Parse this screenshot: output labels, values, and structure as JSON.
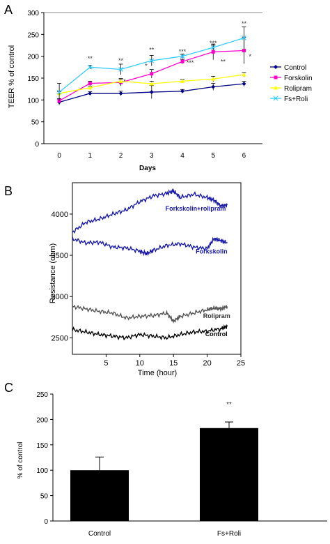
{
  "chart_data": [
    {
      "panel": "A",
      "type": "line",
      "xlabel": "Days",
      "ylabel": "TEER % of control",
      "x": [
        0,
        1,
        2,
        3,
        4,
        5,
        6
      ],
      "xticks": [
        "0",
        "1",
        "2",
        "3",
        "4",
        "5",
        "6"
      ],
      "yticks": [
        "0",
        "50",
        "100",
        "150",
        "200",
        "250",
        "300"
      ],
      "xlim": [
        -0.5,
        6.6
      ],
      "ylim": [
        0,
        300
      ],
      "grid": "horizontal-top-only",
      "legend": "right",
      "series": [
        {
          "name": "Control",
          "color": "#000080",
          "marker": "diamond",
          "values": [
            95,
            115,
            115,
            118,
            120,
            130,
            137
          ],
          "errors": [
            6,
            4,
            5,
            15,
            4,
            8,
            6
          ]
        },
        {
          "name": "Forskolin",
          "color": "#ff00cc",
          "marker": "square",
          "values": [
            98,
            138,
            140,
            160,
            188,
            210,
            213
          ],
          "errors": [
            5,
            5,
            8,
            10,
            5,
            18,
            30
          ]
        },
        {
          "name": "Rolipram",
          "color": "#ffff00",
          "marker": "triangle",
          "values": [
            115,
            128,
            143,
            137,
            143,
            148,
            158
          ],
          "errors": [
            4,
            4,
            6,
            6,
            4,
            6,
            5
          ]
        },
        {
          "name": "Fs+Roli",
          "color": "#33ccff",
          "marker": "x",
          "values": [
            118,
            175,
            170,
            190,
            200,
            220,
            242
          ],
          "errors": [
            20,
            4,
            12,
            12,
            5,
            6,
            25
          ]
        }
      ],
      "annotations": [
        {
          "x": 1,
          "y": 190,
          "text": "**"
        },
        {
          "x": 2,
          "y": 185,
          "text": "**"
        },
        {
          "x": 2.12,
          "y": 137,
          "text": "*"
        },
        {
          "x": 3,
          "y": 210,
          "text": "**"
        },
        {
          "x": 2.82,
          "y": 173,
          "text": "*"
        },
        {
          "x": 4,
          "y": 206,
          "text": "***"
        },
        {
          "x": 4.25,
          "y": 180,
          "text": "***"
        },
        {
          "x": 5,
          "y": 225,
          "text": "***"
        },
        {
          "x": 5.32,
          "y": 183,
          "text": "**"
        },
        {
          "x": 6,
          "y": 270,
          "text": "**"
        },
        {
          "x": 6.2,
          "y": 195,
          "text": "*"
        }
      ]
    },
    {
      "panel": "B",
      "type": "line",
      "xlabel": "Time (hour)",
      "ylabel": "Resistance (ohm)",
      "xticks": [
        "5",
        "10",
        "15",
        "20",
        "25"
      ],
      "yticks": [
        "2500",
        "3000",
        "3500",
        "4000"
      ],
      "xlim": [
        0,
        25
      ],
      "ylim": [
        2300,
        4380
      ],
      "series": [
        {
          "name": "Forkskolin+rolipram",
          "color": "#1a1aaa",
          "x": [
            0,
            2,
            4,
            6,
            8,
            10,
            12,
            14,
            15,
            16,
            18,
            20,
            21,
            22,
            23
          ],
          "values": [
            3780,
            3900,
            3940,
            4000,
            4050,
            4150,
            4220,
            4250,
            4280,
            4200,
            4240,
            4200,
            4170,
            4100,
            4110
          ]
        },
        {
          "name": "Forskolin",
          "color": "#1a1aaa",
          "x": [
            0,
            2,
            4,
            6,
            8,
            10,
            11,
            12,
            14,
            16,
            18,
            20,
            21,
            22,
            23
          ],
          "values": [
            3700,
            3650,
            3660,
            3600,
            3590,
            3550,
            3520,
            3560,
            3620,
            3640,
            3600,
            3580,
            3700,
            3680,
            3650
          ]
        },
        {
          "name": "Rolipram",
          "color": "#555555",
          "x": [
            0,
            2,
            4,
            6,
            8,
            10,
            12,
            14,
            15,
            16,
            18,
            20,
            21,
            22,
            23
          ],
          "values": [
            2880,
            2850,
            2820,
            2800,
            2740,
            2760,
            2770,
            2800,
            2700,
            2760,
            2800,
            2840,
            2860,
            2850,
            2880
          ]
        },
        {
          "name": "Control",
          "color": "#000000",
          "x": [
            0,
            2,
            4,
            6,
            8,
            10,
            12,
            14,
            16,
            18,
            20,
            22,
            23
          ],
          "values": [
            2600,
            2570,
            2540,
            2520,
            2500,
            2540,
            2520,
            2500,
            2540,
            2570,
            2580,
            2610,
            2640
          ]
        }
      ],
      "labels": [
        {
          "text": "Forkskolin+rolipram",
          "x": 13.8,
          "y": 4040,
          "color": "#1a1aaa"
        },
        {
          "text": "Forkskolin",
          "x": 18.3,
          "y": 3520,
          "color": "#1a1aaa"
        },
        {
          "text": "Rolipram",
          "x": 19.4,
          "y": 2740,
          "color": "#333333"
        },
        {
          "text": "Control",
          "x": 19.7,
          "y": 2520,
          "color": "#000000"
        }
      ]
    },
    {
      "panel": "C",
      "type": "bar",
      "ylabel": "% of control",
      "categories": [
        "Control",
        "Fs+Roli"
      ],
      "values": [
        100,
        183
      ],
      "errors": [
        26,
        12
      ],
      "yticks": [
        "0",
        "50",
        "100",
        "150",
        "200",
        "250"
      ],
      "ylim": [
        0,
        250
      ],
      "annotation": "**"
    }
  ],
  "panel_letters": [
    "A",
    "B",
    "C"
  ]
}
